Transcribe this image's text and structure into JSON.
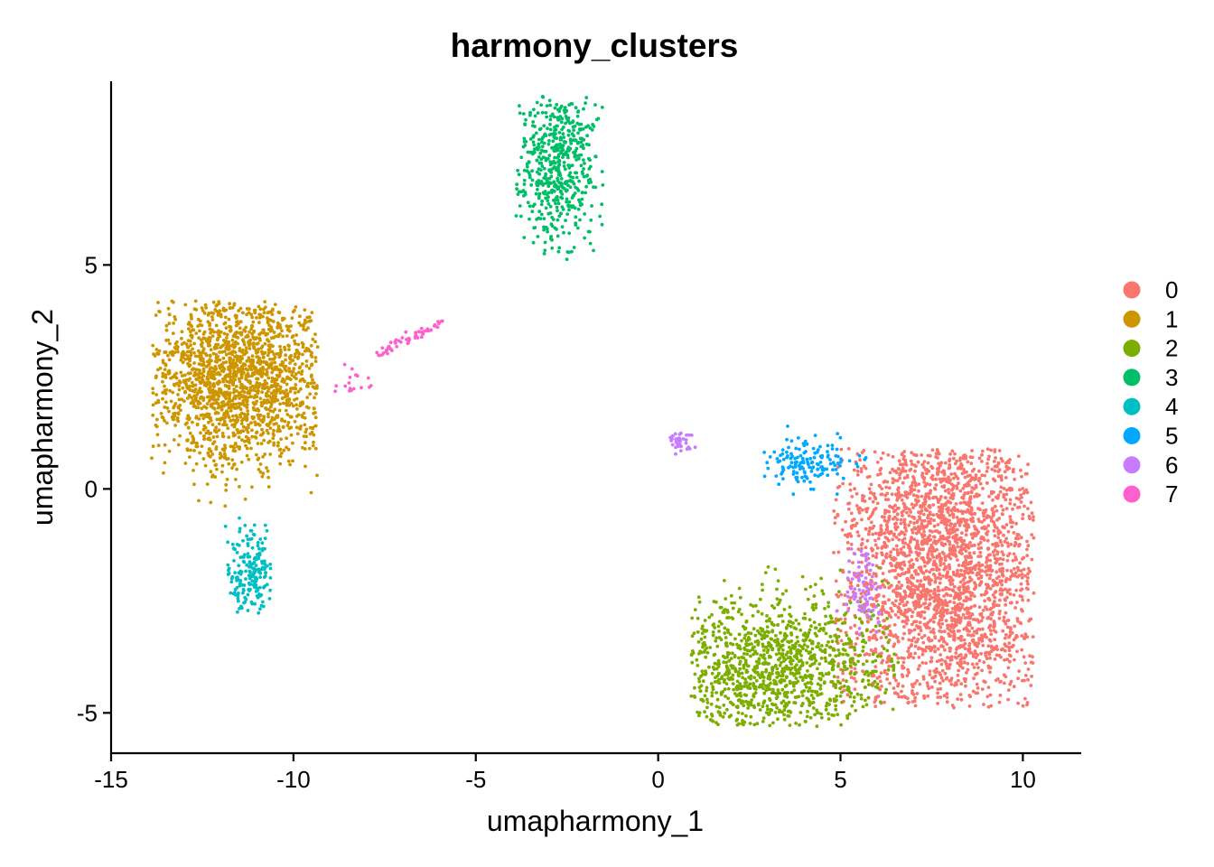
{
  "chart_data": {
    "type": "scatter",
    "title": "harmony_clusters",
    "xlabel": "umapharmony_1",
    "ylabel": "umapharmony_2",
    "xlim": [
      -15,
      11.6
    ],
    "ylim": [
      -5.9,
      9.1
    ],
    "x_ticks": [
      -15,
      -10,
      -5,
      0,
      5,
      10
    ],
    "x_tick_labels": [
      "-15",
      "-10",
      "-5",
      "0",
      "5",
      "10"
    ],
    "y_ticks": [
      -5,
      0,
      5
    ],
    "y_tick_labels": [
      "-5",
      "0",
      "5"
    ],
    "grid": false,
    "legend_position": "right",
    "legend": [
      "0",
      "1",
      "2",
      "3",
      "4",
      "5",
      "6",
      "7"
    ],
    "colors": [
      "#F8766D",
      "#CD9600",
      "#7CAE00",
      "#00BE67",
      "#00BFC4",
      "#00A9FF",
      "#C77CFF",
      "#FF61CC"
    ],
    "clusters": [
      {
        "name": "0",
        "color": "#F8766D",
        "center": [
          7.8,
          -1.7
        ],
        "spread": [
          1.5,
          2.0
        ],
        "approx_points": 2600,
        "x_range": [
          4.8,
          10.3
        ],
        "y_range": [
          -4.9,
          0.9
        ]
      },
      {
        "name": "1",
        "color": "#CD9600",
        "center": [
          -11.5,
          2.5
        ],
        "spread": [
          1.25,
          1.0
        ],
        "approx_points": 1700,
        "x_range": [
          -13.9,
          -9.3
        ],
        "y_range": [
          -0.4,
          4.2
        ]
      },
      {
        "name": "2",
        "color": "#7CAE00",
        "center": [
          3.0,
          -4.0
        ],
        "spread": [
          1.7,
          0.85
        ],
        "approx_points": 1100,
        "x_range": [
          0.9,
          6.6
        ],
        "y_range": [
          -5.3,
          -1.7
        ]
      },
      {
        "name": "3",
        "color": "#00BE67",
        "center": [
          -2.8,
          7.2
        ],
        "spread": [
          0.55,
          0.9
        ],
        "approx_points": 550,
        "x_range": [
          -3.9,
          -1.5
        ],
        "y_range": [
          5.1,
          8.8
        ]
      },
      {
        "name": "4",
        "color": "#00BFC4",
        "center": [
          -11.2,
          -1.8
        ],
        "spread": [
          0.35,
          0.45
        ],
        "approx_points": 190,
        "x_range": [
          -11.9,
          -10.6
        ],
        "y_range": [
          -2.9,
          -0.6
        ]
      },
      {
        "name": "5",
        "color": "#00A9FF",
        "center": [
          4.1,
          0.6
        ],
        "spread": [
          0.6,
          0.25
        ],
        "approx_points": 150,
        "x_range": [
          2.9,
          5.7
        ],
        "y_range": [
          -0.5,
          1.5
        ]
      },
      {
        "name": "6",
        "color": "#C77CFF",
        "center": [
          5.6,
          -2.3
        ],
        "spread": [
          0.25,
          0.4
        ],
        "approx_points": 120,
        "x_range": [
          0.0,
          6.1
        ],
        "y_range": [
          -3.3,
          1.3
        ]
      },
      {
        "name": "7",
        "color": "#FF61CC",
        "center": [
          -7.2,
          3.1
        ],
        "spread": [
          1.0,
          0.3
        ],
        "approx_points": 75,
        "x_range": [
          -9.0,
          -5.9
        ],
        "y_range": [
          2.0,
          3.8
        ]
      }
    ]
  }
}
